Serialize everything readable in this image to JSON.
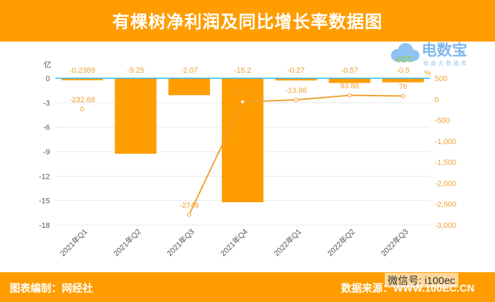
{
  "header": {
    "title": "有棵树净利润及同比增长率数据图"
  },
  "footer": {
    "editor": "图表编制：网经社",
    "source": "数据来源：WWW.100EC.CN",
    "wechat": "微信号: i100ec"
  },
  "logo": {
    "name": "电数宝",
    "subtitle": "电商大数据库",
    "mark": "eDT"
  },
  "chart_data": {
    "type": "bar+line",
    "categories": [
      "2021年Q1",
      "2021年Q2",
      "2021年Q3",
      "2021年Q4",
      "2022年Q1",
      "2022年Q2",
      "2022年Q3"
    ],
    "series": [
      {
        "name": "净利润",
        "axis": "left",
        "type": "bar",
        "color": "#ff9d00",
        "values": [
          -0.2369,
          -9.25,
          -2.07,
          -15.2,
          -0.27,
          -0.57,
          -0.5
        ],
        "labels": [
          "-0.2369",
          "-9.25",
          "-2.07",
          "-15.2",
          "-0.27",
          "-0.57",
          "-0.5"
        ]
      },
      {
        "name": "同比增长率",
        "axis": "right",
        "type": "line",
        "color": "#f0a030",
        "values": [
          -232.68,
          null,
          -2749,
          -61.12,
          -13.96,
          93.86,
          76
        ],
        "labels": [
          "-232.68",
          "",
          "-2749",
          "-61.12",
          "-13.96",
          "93.86",
          "76"
        ]
      }
    ],
    "y_left": {
      "unit": "亿",
      "ylim": [
        -18,
        0
      ],
      "ticks": [
        0,
        -3,
        -6,
        -9,
        -12,
        -15,
        -18
      ],
      "tick_labels": [
        "0",
        "-3",
        "-6",
        "-9",
        "-12",
        "-15",
        "-18"
      ]
    },
    "y_right": {
      "unit": "%",
      "ylim": [
        -3000,
        500
      ],
      "ticks": [
        500,
        0,
        -500,
        -1000,
        -1500,
        -2000,
        -2500,
        -3000
      ],
      "tick_labels": [
        "500",
        "0",
        "-500",
        "-1,000",
        "-1,500",
        "-2,000",
        "-2,500",
        "-3,000"
      ]
    },
    "grid": true
  }
}
